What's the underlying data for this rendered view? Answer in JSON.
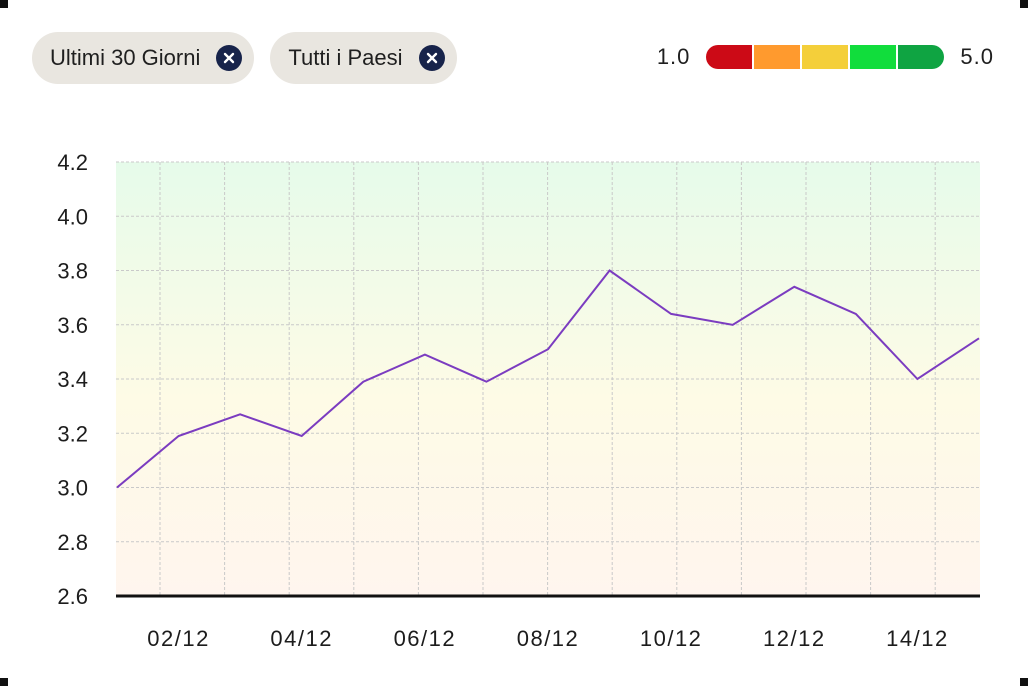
{
  "filters": [
    {
      "label": "Ultimi 30 Giorni",
      "icon": "close-icon"
    },
    {
      "label": "Tutti i Paesi",
      "icon": "close-icon"
    }
  ],
  "legend": {
    "min_label": "1.0",
    "max_label": "5.0",
    "colors": [
      "#cc0a16",
      "#ff9a2e",
      "#f4cf3a",
      "#11dd3c",
      "#0fa442"
    ]
  },
  "chart_data": {
    "type": "line",
    "x": [
      "01/12",
      "02/12",
      "03/12",
      "04/12",
      "05/12",
      "06/12",
      "07/12",
      "08/12",
      "09/12",
      "10/12",
      "11/12",
      "12/12",
      "13/12",
      "14/12",
      "15/12"
    ],
    "xtick_labels": [
      "02/12",
      "04/12",
      "06/12",
      "08/12",
      "10/12",
      "12/12",
      "14/12"
    ],
    "series": [
      {
        "values": [
          3.0,
          3.19,
          3.27,
          3.19,
          3.39,
          3.49,
          3.39,
          3.51,
          3.8,
          3.64,
          3.6,
          3.74,
          3.64,
          3.4,
          3.55
        ],
        "color": "#7b3cc0"
      }
    ],
    "ylim": [
      2.6,
      4.2
    ],
    "yticks": [
      "2.6",
      "2.8",
      "3.0",
      "3.2",
      "3.4",
      "3.6",
      "3.8",
      "4.0",
      "4.2"
    ],
    "grid": true,
    "background_gradient": [
      "#e6fbea",
      "#fefbe6",
      "#fff5ee"
    ]
  }
}
